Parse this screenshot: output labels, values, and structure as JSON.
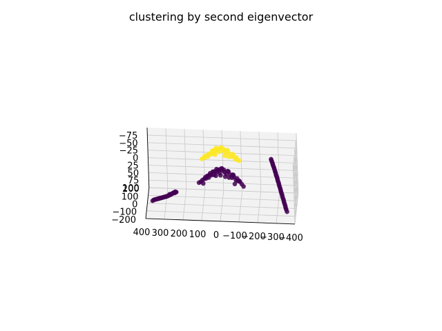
{
  "chart_data": {
    "type": "scatter",
    "title": "clustering by second eigenvector",
    "xlabel": "",
    "ylabel": "",
    "zlabel": "",
    "grid": true,
    "projection": "3d",
    "axes": {
      "x": {
        "ticks": [
          "400",
          "300",
          "200",
          "100",
          "0",
          "−100",
          "−200",
          "−300",
          "−400"
        ]
      },
      "y": {
        "ticks": [
          "200",
          "100",
          "0",
          "−100",
          "−200"
        ]
      },
      "z": {
        "ticks": [
          "−75",
          "−50",
          "−25",
          "0",
          "25",
          "50",
          "75",
          "100"
        ]
      }
    },
    "colors": {
      "cluster_0": "#440154",
      "cluster_1": "#fde725",
      "pane": "#f2f2f2",
      "pane_side": "#ebebeb",
      "grid": "#c8c8c8"
    },
    "series": [
      {
        "cluster": 1,
        "points": [
          [
            -30,
            -20,
            -82
          ],
          [
            -20,
            -10,
            -85
          ],
          [
            -10,
            0,
            -88
          ],
          [
            0,
            10,
            -90
          ],
          [
            10,
            0,
            -88
          ],
          [
            20,
            -10,
            -85
          ],
          [
            30,
            10,
            -82
          ],
          [
            -40,
            20,
            -80
          ],
          [
            40,
            20,
            -78
          ],
          [
            -50,
            0,
            -75
          ],
          [
            50,
            -20,
            -76
          ],
          [
            -60,
            -20,
            -70
          ],
          [
            60,
            0,
            -72
          ],
          [
            -70,
            10,
            -65
          ],
          [
            70,
            10,
            -66
          ],
          [
            -80,
            -10,
            -60
          ],
          [
            80,
            -10,
            -62
          ],
          [
            -90,
            0,
            -55
          ],
          [
            90,
            0,
            -58
          ],
          [
            -100,
            10,
            -50
          ],
          [
            -15,
            25,
            -84
          ],
          [
            15,
            25,
            -84
          ],
          [
            -35,
            30,
            -79
          ],
          [
            35,
            -30,
            -80
          ],
          [
            5,
            -25,
            -86
          ],
          [
            -5,
            30,
            -87
          ],
          [
            25,
            35,
            -83
          ],
          [
            -45,
            -35,
            -74
          ],
          [
            45,
            30,
            -75
          ],
          [
            -65,
            25,
            -68
          ],
          [
            65,
            -25,
            -69
          ],
          [
            -85,
            20,
            -58
          ],
          [
            85,
            15,
            -60
          ],
          [
            -25,
            -40,
            -78
          ],
          [
            25,
            -40,
            -80
          ],
          [
            100,
            0,
            -54
          ]
        ]
      },
      {
        "cluster": 0,
        "points": [
          [
            -30,
            -20,
            -12
          ],
          [
            -20,
            -10,
            -15
          ],
          [
            -10,
            0,
            -18
          ],
          [
            0,
            10,
            -20
          ],
          [
            10,
            0,
            -18
          ],
          [
            20,
            -10,
            -15
          ],
          [
            30,
            10,
            -12
          ],
          [
            -40,
            20,
            -10
          ],
          [
            40,
            20,
            -8
          ],
          [
            -50,
            0,
            -5
          ],
          [
            50,
            -20,
            -6
          ],
          [
            -60,
            -20,
            0
          ],
          [
            60,
            0,
            -2
          ],
          [
            -70,
            10,
            5
          ],
          [
            70,
            10,
            4
          ],
          [
            -80,
            -10,
            10
          ],
          [
            80,
            -10,
            8
          ],
          [
            -90,
            0,
            15
          ],
          [
            90,
            0,
            12
          ],
          [
            -100,
            10,
            20
          ],
          [
            -15,
            25,
            -14
          ],
          [
            15,
            25,
            -14
          ],
          [
            -35,
            30,
            -9
          ],
          [
            35,
            -30,
            -10
          ],
          [
            5,
            -25,
            -16
          ],
          [
            -5,
            30,
            -17
          ],
          [
            25,
            35,
            -13
          ],
          [
            -45,
            -35,
            -4
          ],
          [
            45,
            30,
            -5
          ],
          [
            -65,
            25,
            2
          ],
          [
            65,
            -25,
            1
          ],
          [
            -85,
            20,
            12
          ],
          [
            85,
            15,
            10
          ],
          [
            -25,
            -40,
            -8
          ],
          [
            25,
            -40,
            -10
          ],
          [
            100,
            0,
            16
          ],
          [
            -110,
            0,
            25
          ],
          [
            110,
            0,
            22
          ],
          [
            -60,
            40,
            5
          ],
          [
            60,
            40,
            3
          ],
          [
            0,
            -40,
            -12
          ],
          [
            0,
            40,
            -14
          ],
          [
            -120,
            -10,
            30
          ],
          [
            120,
            10,
            28
          ],
          [
            -75,
            -40,
            15
          ],
          [
            75,
            40,
            12
          ],
          [
            -95,
            30,
            22
          ],
          [
            95,
            -30,
            20
          ]
        ]
      },
      {
        "cluster": 0,
        "points": [
          [
            260,
            200,
            110
          ],
          [
            265,
            180,
            108
          ],
          [
            270,
            160,
            105
          ],
          [
            275,
            140,
            102
          ],
          [
            280,
            120,
            100
          ],
          [
            285,
            100,
            96
          ],
          [
            290,
            80,
            93
          ],
          [
            295,
            60,
            90
          ],
          [
            300,
            40,
            86
          ],
          [
            305,
            20,
            82
          ],
          [
            310,
            0,
            78
          ],
          [
            315,
            -20,
            74
          ],
          [
            320,
            -40,
            70
          ],
          [
            325,
            -60,
            66
          ],
          [
            330,
            -80,
            62
          ],
          [
            335,
            -100,
            58
          ],
          [
            340,
            -120,
            54
          ],
          [
            345,
            -140,
            50
          ],
          [
            350,
            -160,
            46
          ],
          [
            355,
            -180,
            42
          ],
          [
            262,
            190,
            112
          ],
          [
            268,
            170,
            106
          ],
          [
            272,
            150,
            104
          ],
          [
            278,
            130,
            101
          ],
          [
            283,
            110,
            98
          ],
          [
            288,
            90,
            95
          ],
          [
            292,
            70,
            91
          ],
          [
            298,
            50,
            88
          ],
          [
            302,
            30,
            84
          ],
          [
            308,
            10,
            80
          ],
          [
            312,
            -10,
            76
          ],
          [
            318,
            -30,
            72
          ],
          [
            322,
            -50,
            68
          ],
          [
            328,
            -70,
            64
          ],
          [
            332,
            -90,
            60
          ],
          [
            338,
            -110,
            56
          ],
          [
            342,
            -130,
            52
          ],
          [
            348,
            -150,
            48
          ],
          [
            352,
            -170,
            44
          ],
          [
            360,
            -200,
            40
          ],
          [
            255,
            210,
            114
          ],
          [
            258,
            205,
            113
          ],
          [
            285,
            115,
            97
          ],
          [
            300,
            45,
            87
          ],
          [
            330,
            -85,
            61
          ]
        ]
      },
      {
        "cluster": 0,
        "points": [
          [
            -260,
            200,
            -10
          ],
          [
            -265,
            180,
            -8
          ],
          [
            -270,
            160,
            -5
          ],
          [
            -275,
            140,
            -2
          ],
          [
            -280,
            120,
            0
          ],
          [
            -285,
            100,
            4
          ],
          [
            -290,
            80,
            7
          ],
          [
            -295,
            60,
            10
          ],
          [
            -300,
            40,
            14
          ],
          [
            -305,
            20,
            18
          ],
          [
            -310,
            0,
            22
          ],
          [
            -315,
            -20,
            26
          ],
          [
            -320,
            -40,
            30
          ],
          [
            -325,
            -60,
            34
          ],
          [
            -330,
            -80,
            38
          ],
          [
            -335,
            -100,
            42
          ],
          [
            -340,
            -120,
            46
          ],
          [
            -345,
            -140,
            50
          ],
          [
            -350,
            -160,
            54
          ],
          [
            -355,
            -180,
            58
          ],
          [
            -262,
            190,
            -9
          ],
          [
            -268,
            170,
            -6
          ],
          [
            -272,
            150,
            -4
          ],
          [
            -278,
            130,
            -1
          ],
          [
            -283,
            110,
            2
          ],
          [
            -288,
            90,
            5
          ],
          [
            -292,
            70,
            9
          ],
          [
            -298,
            50,
            12
          ],
          [
            -302,
            30,
            16
          ],
          [
            -308,
            10,
            20
          ],
          [
            -312,
            -10,
            24
          ],
          [
            -318,
            -30,
            28
          ],
          [
            -322,
            -50,
            32
          ],
          [
            -328,
            -70,
            36
          ],
          [
            -332,
            -90,
            40
          ],
          [
            -338,
            -110,
            44
          ],
          [
            -342,
            -130,
            48
          ],
          [
            -348,
            -150,
            52
          ],
          [
            -352,
            -170,
            56
          ],
          [
            -360,
            -200,
            60
          ]
        ]
      }
    ]
  }
}
